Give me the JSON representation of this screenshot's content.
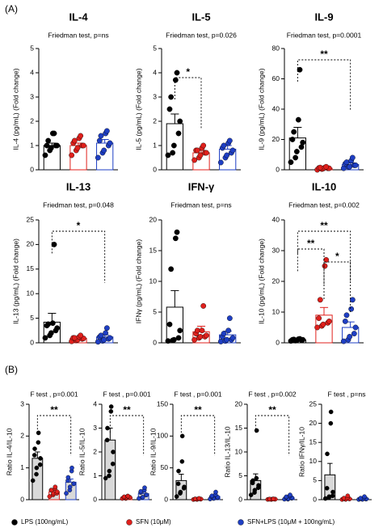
{
  "panels": [
    "(A)",
    "(B)"
  ],
  "legend": [
    {
      "label": "LPS (100ng/mL)",
      "color": "#000000"
    },
    {
      "label": "SFN (10μM)",
      "color": "#e0201c"
    },
    {
      "label": "SFN+LPS (10μM + 100ng/mL)",
      "color": "#1f3fc4"
    }
  ],
  "chart_data": [
    {
      "type": "bar",
      "title": "IL-4",
      "subtitle": "Friedman test, p=ns",
      "ylabel": "IL-4 (pg/mL) (Fold change)",
      "ylim": [
        0,
        5
      ],
      "yticks": [
        0,
        1,
        2,
        3,
        4,
        5
      ],
      "bar_fill": "#ffffff",
      "series": [
        {
          "color": "#000000",
          "value": 1.0,
          "error": 0.1,
          "points": [
            0.6,
            0.8,
            0.9,
            1.0,
            1.0,
            1.0,
            1.2,
            1.5,
            1.5
          ]
        },
        {
          "color": "#e0201c",
          "value": 1.0,
          "error": 0.1,
          "points": [
            0.6,
            0.8,
            0.9,
            1.0,
            1.0,
            1.1,
            1.2,
            1.3,
            1.4
          ]
        },
        {
          "color": "#1f3fc4",
          "value": 1.1,
          "error": 0.15,
          "points": [
            0.5,
            0.7,
            0.8,
            1.0,
            1.1,
            1.2,
            1.4,
            1.5,
            1.6
          ]
        }
      ],
      "annotations": []
    },
    {
      "type": "bar",
      "title": "IL-5",
      "subtitle": "Friedman test, p=0.026",
      "ylabel": "IL-5 (pg/mL) (Fold change)",
      "ylim": [
        0,
        5
      ],
      "yticks": [
        0,
        1,
        2,
        3,
        4,
        5
      ],
      "bar_fill": "#ffffff",
      "series": [
        {
          "color": "#000000",
          "value": 1.9,
          "error": 0.4,
          "points": [
            0.6,
            0.7,
            1.0,
            1.5,
            2.0,
            2.5,
            3.0,
            3.7,
            4.0
          ]
        },
        {
          "color": "#e0201c",
          "value": 0.7,
          "error": 0.1,
          "points": [
            0.4,
            0.5,
            0.6,
            0.7,
            0.7,
            0.8,
            0.8,
            0.9,
            1.0
          ]
        },
        {
          "color": "#1f3fc4",
          "value": 0.85,
          "error": 0.15,
          "points": [
            0.3,
            0.5,
            0.6,
            0.7,
            0.8,
            0.9,
            1.0,
            1.1,
            1.2
          ]
        }
      ],
      "annotations": [
        {
          "text": "*",
          "groups": [
            0,
            1
          ]
        }
      ]
    },
    {
      "type": "bar",
      "title": "IL-9",
      "subtitle": "Friedman test, p=0.0001",
      "ylabel": "IL-9 (pg/mL) (Fold change)",
      "ylim": [
        0,
        80
      ],
      "yticks": [
        0,
        20,
        40,
        60,
        80
      ],
      "bar_fill": "#ffffff",
      "series": [
        {
          "color": "#000000",
          "value": 21,
          "error": 7,
          "points": [
            5,
            8,
            12,
            15,
            18,
            20,
            25,
            33,
            66
          ]
        },
        {
          "color": "#e0201c",
          "value": 1,
          "error": 0.5,
          "points": [
            0,
            0.5,
            0.8,
            1,
            1,
            1.2,
            1.5,
            1.5,
            2
          ]
        },
        {
          "color": "#1f3fc4",
          "value": 3.5,
          "error": 1,
          "points": [
            1,
            2,
            2,
            3,
            3,
            4,
            5,
            6,
            8
          ]
        }
      ],
      "annotations": [
        {
          "text": "**",
          "groups": [
            0,
            2
          ]
        }
      ]
    },
    {
      "type": "bar",
      "title": "IL-13",
      "subtitle": "Friedman test, p=0.048",
      "ylabel": "IL-13 (pg/mL) (Fold change)",
      "ylim": [
        0,
        25
      ],
      "yticks": [
        0,
        5,
        10,
        15,
        20,
        25
      ],
      "bar_fill": "#ffffff",
      "series": [
        {
          "color": "#000000",
          "value": 4.2,
          "error": 1.8,
          "points": [
            1,
            1.5,
            2,
            2.5,
            3,
            3.5,
            3.8,
            4,
            20
          ]
        },
        {
          "color": "#e0201c",
          "value": 0.9,
          "error": 0.2,
          "points": [
            0.3,
            0.5,
            0.6,
            0.8,
            0.9,
            1,
            1,
            1.2,
            1.5
          ]
        },
        {
          "color": "#1f3fc4",
          "value": 1.2,
          "error": 0.4,
          "points": [
            0.2,
            0.4,
            0.6,
            0.8,
            1,
            1.2,
            1.5,
            2,
            3
          ]
        }
      ],
      "annotations": [
        {
          "text": "*",
          "groups": [
            0,
            2
          ]
        }
      ]
    },
    {
      "type": "bar",
      "title": "IFN-γ",
      "subtitle": "Friedman test, p=ns",
      "ylabel": "IFNγ (pg/mL) (Fold change)",
      "ylim": [
        0,
        20
      ],
      "yticks": [
        0,
        5,
        10,
        15,
        20
      ],
      "bar_fill": "#ffffff",
      "series": [
        {
          "color": "#000000",
          "value": 5.8,
          "error": 2.7,
          "points": [
            0.3,
            0.4,
            0.5,
            0.8,
            2,
            3,
            12,
            17,
            18
          ]
        },
        {
          "color": "#e0201c",
          "value": 1.8,
          "error": 0.9,
          "points": [
            0.5,
            0.8,
            1,
            1,
            1.2,
            1.5,
            2,
            2,
            6
          ]
        },
        {
          "color": "#1f3fc4",
          "value": 1.3,
          "error": 0.6,
          "points": [
            0.2,
            0.3,
            0.5,
            0.5,
            0.8,
            1,
            1.5,
            2,
            4
          ]
        }
      ],
      "annotations": []
    },
    {
      "type": "bar",
      "title": "IL-10",
      "subtitle": "Friedman test, p=0.002",
      "ylabel": "IL-10 (pg/mL) (Fold change)",
      "ylim": [
        0,
        40
      ],
      "yticks": [
        0,
        10,
        20,
        30,
        40
      ],
      "bar_fill": "#ffffff",
      "series": [
        {
          "color": "#000000",
          "value": 1,
          "error": 0.1,
          "points": [
            0.6,
            0.7,
            0.8,
            0.9,
            1,
            1,
            1.1,
            1.2,
            1.3
          ]
        },
        {
          "color": "#e0201c",
          "value": 9,
          "error": 2.5,
          "points": [
            5,
            5.5,
            6,
            6.5,
            7,
            8,
            14,
            25,
            27
          ]
        },
        {
          "color": "#1f3fc4",
          "value": 5,
          "error": 1.8,
          "points": [
            0.5,
            1,
            2,
            3,
            5,
            7,
            9,
            11,
            14
          ]
        }
      ],
      "annotations": [
        {
          "text": "**",
          "groups": [
            0,
            1
          ]
        },
        {
          "text": "*",
          "groups": [
            1,
            2
          ]
        },
        {
          "text": "**",
          "groups": [
            0,
            2
          ]
        }
      ]
    },
    {
      "type": "bar",
      "subtitle": "F test , p=0.001",
      "ylabel": "Ratio IL-4/IL-10",
      "ylim": [
        0,
        3
      ],
      "yticks": [
        0,
        1,
        2,
        3
      ],
      "bar_fill": "#d9d9d9",
      "series": [
        {
          "color": "#000000",
          "value": 1.3,
          "error": 0.2,
          "points": [
            0.6,
            0.8,
            1.0,
            1.1,
            1.3,
            1.4,
            1.6,
            1.8,
            2.1
          ]
        },
        {
          "color": "#e0201c",
          "value": 0.25,
          "error": 0.05,
          "points": [
            0.1,
            0.15,
            0.2,
            0.2,
            0.25,
            0.3,
            0.3,
            0.35,
            0.4
          ]
        },
        {
          "color": "#1f3fc4",
          "value": 0.55,
          "error": 0.1,
          "points": [
            0.2,
            0.3,
            0.4,
            0.5,
            0.5,
            0.6,
            0.7,
            0.9,
            1.0
          ]
        }
      ],
      "annotations": [
        {
          "text": "**",
          "groups": [
            0,
            2
          ]
        }
      ]
    },
    {
      "type": "bar",
      "subtitle": "F test , p=0.001",
      "ylabel": "Ratio IL-5/IL-10",
      "ylim": [
        0,
        4
      ],
      "yticks": [
        0,
        1,
        2,
        3,
        4
      ],
      "bar_fill": "#d9d9d9",
      "series": [
        {
          "color": "#000000",
          "value": 2.5,
          "error": 0.5,
          "points": [
            0.9,
            1.0,
            1.2,
            1.5,
            2.0,
            2.5,
            3.0,
            3.7,
            3.9
          ]
        },
        {
          "color": "#e0201c",
          "value": 0.1,
          "error": 0.03,
          "points": [
            0.05,
            0.05,
            0.08,
            0.1,
            0.1,
            0.1,
            0.12,
            0.15,
            0.15
          ]
        },
        {
          "color": "#1f3fc4",
          "value": 0.25,
          "error": 0.06,
          "points": [
            0.05,
            0.1,
            0.1,
            0.2,
            0.2,
            0.3,
            0.35,
            0.4,
            0.5
          ]
        }
      ],
      "annotations": [
        {
          "text": "**",
          "groups": [
            0,
            2
          ]
        }
      ]
    },
    {
      "type": "bar",
      "subtitle": "F test , p=0.001",
      "ylabel": "Ratio IL-9/IL-10",
      "ylim": [
        0,
        150
      ],
      "yticks": [
        0,
        50,
        100,
        150
      ],
      "bar_fill": "#d9d9d9",
      "series": [
        {
          "color": "#000000",
          "value": 30,
          "error": 10,
          "points": [
            5,
            10,
            12,
            18,
            20,
            25,
            45,
            60,
            100
          ]
        },
        {
          "color": "#e0201c",
          "value": 1,
          "error": 0.3,
          "points": [
            0.2,
            0.5,
            0.5,
            0.8,
            1,
            1,
            1.2,
            1.5,
            2
          ]
        },
        {
          "color": "#1f3fc4",
          "value": 5,
          "error": 1.5,
          "points": [
            1,
            2,
            2,
            3,
            4,
            5,
            6,
            8,
            12
          ]
        }
      ],
      "annotations": [
        {
          "text": "**",
          "groups": [
            0,
            2
          ]
        }
      ]
    },
    {
      "type": "bar",
      "subtitle": "F test , p=0.002",
      "ylabel": "Ratio IL-13/IL-10",
      "ylim": [
        0,
        20
      ],
      "yticks": [
        0,
        5,
        10,
        15,
        20
      ],
      "bar_fill": "#d9d9d9",
      "series": [
        {
          "color": "#000000",
          "value": 4,
          "error": 1.4,
          "points": [
            1,
            1.5,
            2,
            2.5,
            3,
            3.5,
            4,
            4.5,
            14.5
          ]
        },
        {
          "color": "#e0201c",
          "value": 0.1,
          "error": 0.03,
          "points": [
            0.05,
            0.05,
            0.08,
            0.1,
            0.1,
            0.1,
            0.12,
            0.15,
            0.15
          ]
        },
        {
          "color": "#1f3fc4",
          "value": 0.4,
          "error": 0.15,
          "points": [
            0.1,
            0.1,
            0.2,
            0.3,
            0.4,
            0.5,
            0.6,
            0.8,
            1
          ]
        }
      ],
      "annotations": [
        {
          "text": "**",
          "groups": [
            0,
            2
          ]
        }
      ]
    },
    {
      "type": "bar",
      "subtitle": "F test , p=ns",
      "ylabel": "Ratio IFNγ/IL-10",
      "ylim": [
        0,
        25
      ],
      "yticks": [
        0,
        5,
        10,
        15,
        20,
        25
      ],
      "bar_fill": "#d9d9d9",
      "series": [
        {
          "color": "#000000",
          "value": 6.5,
          "error": 3,
          "points": [
            0.3,
            0.5,
            0.8,
            1,
            2,
            3,
            12,
            20,
            23
          ]
        },
        {
          "color": "#e0201c",
          "value": 0.3,
          "error": 0.15,
          "points": [
            0.05,
            0.1,
            0.1,
            0.2,
            0.2,
            0.3,
            0.4,
            0.5,
            1
          ]
        },
        {
          "color": "#1f3fc4",
          "value": 0.3,
          "error": 0.1,
          "points": [
            0.05,
            0.1,
            0.1,
            0.15,
            0.2,
            0.3,
            0.4,
            0.5,
            0.8
          ]
        }
      ],
      "annotations": []
    }
  ]
}
